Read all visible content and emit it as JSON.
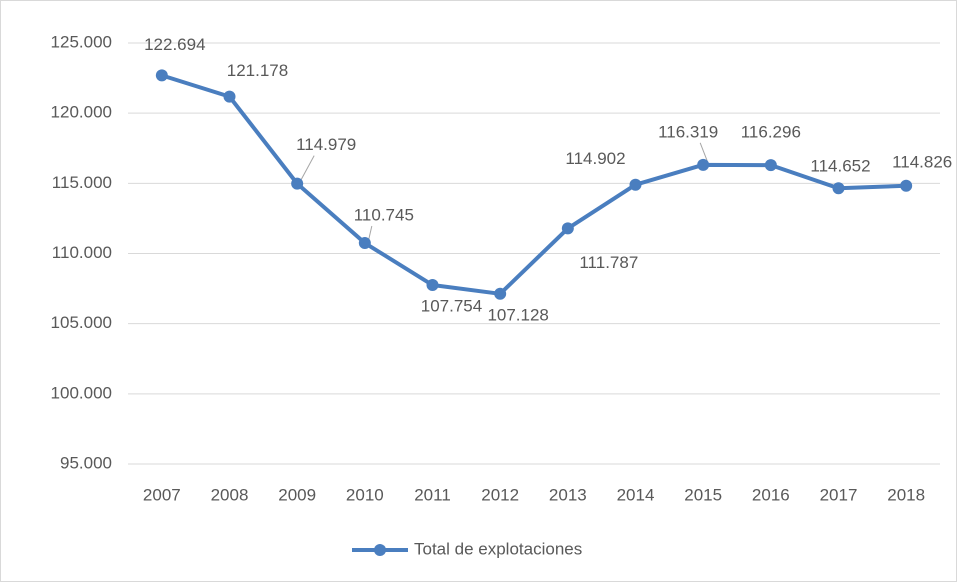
{
  "chart_data": {
    "type": "line",
    "categories": [
      "2007",
      "2008",
      "2009",
      "2010",
      "2011",
      "2012",
      "2013",
      "2014",
      "2015",
      "2016",
      "2017",
      "2018"
    ],
    "series": [
      {
        "name": "Total de explotaciones",
        "color": "#4a7ebf",
        "values": [
          122694,
          121178,
          114979,
          110745,
          107754,
          107128,
          111787,
          114902,
          116319,
          116296,
          114652,
          114826
        ],
        "value_labels": [
          "122.694",
          "121.178",
          "114.979",
          "110.745",
          "107.754",
          "107.128",
          "111.787",
          "114.902",
          "116.319",
          "116.296",
          "114.652",
          "114.826"
        ]
      }
    ],
    "ylim": [
      95000,
      125000
    ],
    "yticks": [
      {
        "value": 95000,
        "label": "95.000"
      },
      {
        "value": 100000,
        "label": "100.000"
      },
      {
        "value": 105000,
        "label": "105.000"
      },
      {
        "value": 110000,
        "label": "110.000"
      },
      {
        "value": 115000,
        "label": "115.000"
      },
      {
        "value": 120000,
        "label": "120.000"
      },
      {
        "value": 125000,
        "label": "125.000"
      }
    ],
    "grid": true,
    "legend": "bottom"
  }
}
